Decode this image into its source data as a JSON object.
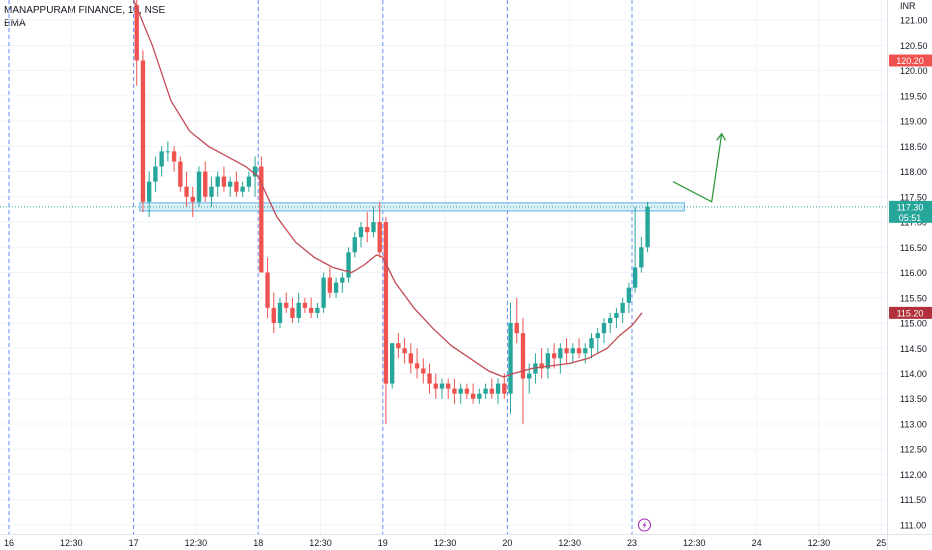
{
  "legend": {
    "symbol_line": "MANAPPURAM FINANCE, 15, NSE",
    "indicator": "EMA"
  },
  "colors": {
    "up": "#26a69a",
    "down": "#ef5350",
    "ema": "#c24a56",
    "zone_fill": "#d4ecf9",
    "zone_stroke": "#5fb0e6",
    "drawing": "#2e9a3a",
    "session_line": "#2962ff",
    "price_line": "#26a69a",
    "grid": "#f0f3fa",
    "axis_text": "#131722",
    "flash": "#9c27b0"
  },
  "chart_data": {
    "type": "candlestick",
    "currency": "INR",
    "ylim": [
      110.9,
      121.2
    ],
    "y_ticks": [
      "111.00",
      "111.50",
      "112.00",
      "112.50",
      "113.00",
      "113.50",
      "114.00",
      "114.50",
      "115.00",
      "115.50",
      "116.00",
      "116.50",
      "117.00",
      "117.50",
      "118.00",
      "118.50",
      "119.00",
      "119.50",
      "120.00",
      "120.50",
      "121.00"
    ],
    "x_ticks": [
      {
        "label": "16",
        "t": 0
      },
      {
        "label": "12:30",
        "t": 0.5
      },
      {
        "label": "17",
        "t": 1
      },
      {
        "label": "12:30",
        "t": 1.5
      },
      {
        "label": "18",
        "t": 2
      },
      {
        "label": "12:30",
        "t": 2.5
      },
      {
        "label": "19",
        "t": 3
      },
      {
        "label": "12:30",
        "t": 3.5
      },
      {
        "label": "20",
        "t": 4
      },
      {
        "label": "12:30",
        "t": 4.5
      },
      {
        "label": "23",
        "t": 5
      },
      {
        "label": "12:30",
        "t": 5.5
      },
      {
        "label": "24",
        "t": 6
      },
      {
        "label": "12:30",
        "t": 6.5
      },
      {
        "label": "25",
        "t": 7
      }
    ],
    "session_starts": [
      1,
      2,
      3,
      4,
      5
    ],
    "price_badges": [
      {
        "value": 120.2,
        "label": "120.20",
        "kind": "red"
      },
      {
        "value": 117.3,
        "label": "117.30",
        "sublabel": "05:51",
        "kind": "last"
      },
      {
        "value": 115.2,
        "label": "115.20",
        "kind": "ema"
      }
    ],
    "last_price": 117.3,
    "sessions": [
      {
        "day": "17",
        "candles": [
          [
            121.3,
            121.4,
            119.7,
            120.2
          ],
          [
            120.2,
            120.4,
            117.2,
            117.4
          ],
          [
            117.4,
            118.0,
            117.1,
            117.8
          ],
          [
            117.8,
            118.3,
            117.6,
            118.1
          ],
          [
            118.1,
            118.5,
            117.9,
            118.4
          ],
          [
            118.4,
            118.6,
            118.2,
            118.4
          ],
          [
            118.4,
            118.5,
            118.0,
            118.2
          ],
          [
            118.2,
            118.3,
            117.6,
            117.7
          ],
          [
            117.7,
            118.0,
            117.3,
            117.5
          ],
          [
            117.5,
            117.7,
            117.1,
            117.4
          ],
          [
            117.4,
            118.1,
            117.3,
            118.0
          ],
          [
            118.0,
            118.2,
            117.4,
            117.5
          ],
          [
            117.5,
            117.9,
            117.3,
            117.7
          ],
          [
            117.7,
            118.0,
            117.5,
            117.9
          ],
          [
            117.9,
            118.1,
            117.6,
            117.7
          ],
          [
            117.7,
            117.9,
            117.5,
            117.8
          ],
          [
            117.8,
            118.0,
            117.5,
            117.6
          ],
          [
            117.6,
            117.8,
            117.5,
            117.7
          ],
          [
            117.7,
            118.0,
            117.6,
            117.9
          ],
          [
            117.9,
            118.3,
            117.5,
            118.1
          ]
        ]
      },
      {
        "day": "18",
        "candles": [
          [
            118.1,
            118.3,
            116.0,
            116.0
          ],
          [
            116.0,
            116.3,
            115.1,
            115.3
          ],
          [
            115.3,
            115.6,
            114.8,
            115.0
          ],
          [
            115.0,
            115.5,
            114.9,
            115.4
          ],
          [
            115.4,
            115.6,
            115.2,
            115.3
          ],
          [
            115.3,
            115.5,
            115.0,
            115.1
          ],
          [
            115.1,
            115.6,
            115.0,
            115.4
          ],
          [
            115.4,
            115.5,
            115.2,
            115.3
          ],
          [
            115.3,
            115.5,
            115.1,
            115.2
          ],
          [
            115.2,
            115.4,
            115.1,
            115.3
          ],
          [
            115.3,
            116.0,
            115.2,
            115.9
          ],
          [
            115.9,
            116.1,
            115.5,
            115.6
          ],
          [
            115.6,
            115.9,
            115.5,
            115.8
          ],
          [
            115.8,
            116.0,
            115.6,
            115.9
          ],
          [
            115.9,
            116.5,
            115.8,
            116.4
          ],
          [
            116.4,
            116.8,
            116.3,
            116.7
          ],
          [
            116.7,
            117.0,
            116.5,
            116.9
          ],
          [
            116.9,
            117.2,
            116.6,
            116.8
          ],
          [
            116.8,
            117.3,
            116.7,
            117.0
          ],
          [
            117.0,
            117.4,
            116.3,
            116.4
          ]
        ]
      },
      {
        "day": "19",
        "candles": [
          [
            117.0,
            117.1,
            113.0,
            113.8
          ],
          [
            113.8,
            114.6,
            113.7,
            114.6
          ],
          [
            114.6,
            114.8,
            114.3,
            114.5
          ],
          [
            114.5,
            114.7,
            114.2,
            114.4
          ],
          [
            114.4,
            114.6,
            114.0,
            114.2
          ],
          [
            114.2,
            114.5,
            113.9,
            114.1
          ],
          [
            114.1,
            114.3,
            113.8,
            114.0
          ],
          [
            114.0,
            114.2,
            113.6,
            113.8
          ],
          [
            113.8,
            114.0,
            113.5,
            113.7
          ],
          [
            113.7,
            113.9,
            113.5,
            113.8
          ],
          [
            113.8,
            113.9,
            113.5,
            113.7
          ],
          [
            113.7,
            113.9,
            113.4,
            113.6
          ],
          [
            113.6,
            113.8,
            113.4,
            113.7
          ],
          [
            113.7,
            113.8,
            113.5,
            113.6
          ],
          [
            113.6,
            113.8,
            113.4,
            113.5
          ],
          [
            113.5,
            113.7,
            113.4,
            113.6
          ],
          [
            113.6,
            113.8,
            113.5,
            113.7
          ],
          [
            113.7,
            113.9,
            113.5,
            113.6
          ],
          [
            113.6,
            113.9,
            113.4,
            113.8
          ],
          [
            113.8,
            114.0,
            113.5,
            113.6
          ]
        ]
      },
      {
        "day": "20",
        "candles": [
          [
            113.6,
            115.4,
            113.2,
            115.0
          ],
          [
            115.0,
            115.5,
            114.6,
            114.8
          ],
          [
            114.8,
            115.1,
            113.0,
            113.9
          ],
          [
            113.9,
            114.2,
            113.6,
            114.0
          ],
          [
            114.0,
            114.4,
            113.8,
            114.2
          ],
          [
            114.2,
            114.5,
            113.9,
            114.1
          ],
          [
            114.1,
            114.5,
            113.9,
            114.4
          ],
          [
            114.4,
            114.6,
            114.1,
            114.3
          ],
          [
            114.3,
            114.6,
            114.0,
            114.5
          ],
          [
            114.5,
            114.7,
            114.2,
            114.4
          ],
          [
            114.4,
            114.6,
            114.2,
            114.5
          ],
          [
            114.5,
            114.7,
            114.3,
            114.4
          ],
          [
            114.4,
            114.6,
            114.2,
            114.5
          ],
          [
            114.5,
            114.8,
            114.3,
            114.7
          ],
          [
            114.7,
            114.9,
            114.4,
            114.8
          ],
          [
            114.8,
            115.1,
            114.6,
            115.0
          ],
          [
            115.0,
            115.2,
            114.8,
            115.1
          ],
          [
            115.1,
            115.3,
            114.9,
            115.2
          ],
          [
            115.2,
            115.5,
            115.0,
            115.4
          ],
          [
            115.4,
            115.8,
            115.2,
            115.7
          ]
        ]
      },
      {
        "day": "23",
        "candles": [
          [
            115.7,
            117.3,
            115.6,
            116.1
          ],
          [
            116.1,
            116.7,
            116.0,
            116.5
          ],
          [
            116.5,
            117.4,
            116.4,
            117.3
          ]
        ]
      }
    ],
    "ema": [
      {
        "t": 1.0,
        "p": 121.4
      },
      {
        "t": 1.15,
        "p": 120.5
      },
      {
        "t": 1.3,
        "p": 119.4
      },
      {
        "t": 1.45,
        "p": 118.8
      },
      {
        "t": 1.6,
        "p": 118.5
      },
      {
        "t": 1.75,
        "p": 118.3
      },
      {
        "t": 1.9,
        "p": 118.1
      },
      {
        "t": 2.0,
        "p": 117.9
      },
      {
        "t": 2.15,
        "p": 117.1
      },
      {
        "t": 2.3,
        "p": 116.6
      },
      {
        "t": 2.45,
        "p": 116.3
      },
      {
        "t": 2.6,
        "p": 116.1
      },
      {
        "t": 2.75,
        "p": 116.0
      },
      {
        "t": 2.85,
        "p": 116.15
      },
      {
        "t": 2.95,
        "p": 116.35
      },
      {
        "t": 3.0,
        "p": 116.3
      },
      {
        "t": 3.1,
        "p": 115.8
      },
      {
        "t": 3.25,
        "p": 115.3
      },
      {
        "t": 3.4,
        "p": 114.9
      },
      {
        "t": 3.55,
        "p": 114.55
      },
      {
        "t": 3.7,
        "p": 114.3
      },
      {
        "t": 3.85,
        "p": 114.05
      },
      {
        "t": 3.97,
        "p": 113.93
      },
      {
        "t": 4.05,
        "p": 114.0
      },
      {
        "t": 4.2,
        "p": 114.1
      },
      {
        "t": 4.35,
        "p": 114.15
      },
      {
        "t": 4.5,
        "p": 114.2
      },
      {
        "t": 4.65,
        "p": 114.3
      },
      {
        "t": 4.8,
        "p": 114.5
      },
      {
        "t": 4.9,
        "p": 114.75
      },
      {
        "t": 5.0,
        "p": 114.95
      },
      {
        "t": 5.08,
        "p": 115.2
      }
    ],
    "zone": {
      "t0": 1.05,
      "t1": 5.42,
      "p_top": 117.38,
      "p_bottom": 117.22
    },
    "projection": {
      "zigzag": [
        {
          "t": 5.33,
          "p": 117.8
        },
        {
          "t": 5.64,
          "p": 117.4
        },
        {
          "t": 5.72,
          "p": 118.75
        }
      ],
      "arrow_head": [
        {
          "t": 5.68,
          "p": 118.62
        },
        {
          "t": 5.72,
          "p": 118.75
        },
        {
          "t": 5.75,
          "p": 118.62
        }
      ]
    },
    "grid": true
  }
}
